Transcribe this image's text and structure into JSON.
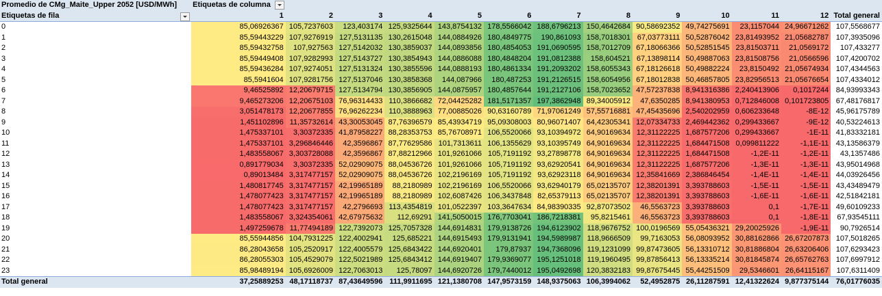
{
  "pivot": {
    "title": "Promedio de CMg_Maite_Upper 2052 [USD/MWh]",
    "col_header_label": "Etiquetas de columna",
    "row_header_label": "Etiquetas de fila",
    "total_label": "Total general",
    "columns": [
      "1",
      "2",
      "3",
      "4",
      "5",
      "6",
      "7",
      "8",
      "9",
      "10",
      "11",
      "12"
    ],
    "rows": [
      {
        "label": "0",
        "values": [
          "85,06926367",
          "105,7237603",
          "123,403174",
          "125,9325644",
          "143,8754132",
          "178,5566042",
          "188,6796213",
          "150,4642684",
          "90,58692352",
          "49,74275691",
          "23,1157044",
          "24,96671262"
        ],
        "total": "107,5568677"
      },
      {
        "label": "1",
        "values": [
          "85,59443229",
          "107,9276919",
          "127,5131135",
          "130,2615048",
          "144,0884926",
          "180,4849775",
          "190,861093",
          "158,7018301",
          "67,03773111",
          "50,52876042",
          "23,81493952",
          "21,05682787"
        ],
        "total": "107,3935096"
      },
      {
        "label": "2",
        "values": [
          "85,59432758",
          "107,927563",
          "127,5142032",
          "130,3859037",
          "144,0893856",
          "180,4854053",
          "191,0690595",
          "158,7012709",
          "67,18066366",
          "50,52851545",
          "23,81503711",
          "21,0569172"
        ],
        "total": "107,433277"
      },
      {
        "label": "3",
        "values": [
          "85,59449408",
          "107,9282993",
          "127,5143727",
          "130,3854943",
          "144,0886088",
          "180,4848204",
          "191,0812388",
          "158,604521",
          "67,13898114",
          "50,49887063",
          "23,81508756",
          "21,0566596"
        ],
        "total": "107,4200702"
      },
      {
        "label": "4",
        "values": [
          "85,59436284",
          "107,9274051",
          "127,5131324",
          "130,3855596",
          "144,0888193",
          "180,4861334",
          "191,2093202",
          "158,6055343",
          "67,18126618",
          "50,49882224",
          "23,8150492",
          "21,05674934"
        ],
        "total": "107,4344563"
      },
      {
        "label": "5",
        "values": [
          "85,5941604",
          "107,9281756",
          "127,5137046",
          "130,3858368",
          "144,087966",
          "180,487253",
          "191,2126515",
          "158,6054956",
          "67,18012838",
          "50,46857805",
          "23,82956513",
          "21,05676654"
        ],
        "total": "107,4334012"
      },
      {
        "label": "6",
        "values": [
          "9,46525892",
          "12,20679715",
          "127,5134794",
          "130,3856905",
          "144,0875957",
          "180,4857644",
          "191,2127106",
          "158,7023652",
          "47,57237838",
          "8,941316386",
          "2,240413906",
          "0,1017244"
        ],
        "total": "84,93993343"
      },
      {
        "label": "7",
        "values": [
          "9,465273206",
          "12,20675103",
          "76,96314433",
          "110,3866682",
          "72,04425282",
          "181,5171357",
          "197,3862948",
          "89,34005912",
          "47,6350285",
          "8,941380953",
          "0,712846008",
          "0,101723805"
        ],
        "total": "67,48176817"
      },
      {
        "label": "8",
        "values": [
          "3,051478173",
          "12,20677855",
          "76,96262234",
          "110,3888963",
          "77,00885026",
          "90,63160789",
          "71,97061249",
          "57,55716881",
          "47,45435696",
          "2,540202959",
          "0,606233648",
          "-8E-12"
        ],
        "total": "45,96175789"
      },
      {
        "label": "9",
        "values": [
          "1,451102896",
          "11,35732614",
          "43,30053045",
          "87,76396579",
          "85,43934719",
          "95,09308003",
          "80,96071407",
          "64,42305341",
          "12,07334733",
          "2,469442362",
          "0,299433667",
          "-9E-12"
        ],
        "total": "40,53224613"
      },
      {
        "label": "10",
        "values": [
          "1,475337101",
          "3,30372335",
          "41,87958227",
          "88,28353753",
          "85,76708971",
          "106,5520066",
          "93,10394972",
          "64,90169634",
          "12,31122225",
          "1,687577206",
          "0,299433667",
          "-1E-11"
        ],
        "total": "41,83332181"
      },
      {
        "label": "11",
        "values": [
          "1,475337101",
          "3,296846446",
          "42,3596867",
          "87,77629586",
          "101,7313611",
          "106,1355629",
          "93,10395749",
          "64,90169634",
          "12,31122225",
          "1,684471508",
          "0,099811222",
          "-1,1E-11"
        ],
        "total": "43,13586379"
      },
      {
        "label": "12",
        "values": [
          "1,483558067",
          "3,303728088",
          "42,3596867",
          "87,88212966",
          "101,9261066",
          "105,7191192",
          "93,27898778",
          "64,90169634",
          "12,31122225",
          "1,684471508",
          "-1,2E-11",
          "-1,2E-11"
        ],
        "total": "43,1357486"
      },
      {
        "label": "13",
        "values": [
          "0,891779034",
          "3,30372335",
          "52,02909075",
          "88,04536726",
          "101,9261066",
          "105,7191192",
          "93,62920541",
          "64,90169634",
          "12,31122225",
          "1,687577206",
          "-1,3E-11",
          "-1,3E-11"
        ],
        "total": "43,95014968"
      },
      {
        "label": "14",
        "values": [
          "0,89013484",
          "3,317477157",
          "52,02909075",
          "88,04536726",
          "102,2196169",
          "105,7191192",
          "93,62923118",
          "64,90169634",
          "12,35841669",
          "2,386846454",
          "-1,4E-11",
          "-1,4E-11"
        ],
        "total": "44,03926456"
      },
      {
        "label": "15",
        "values": [
          "1,480817745",
          "3,317477157",
          "42,19965189",
          "88,2180989",
          "102,2196169",
          "106,5520066",
          "93,62940179",
          "65,02135707",
          "12,38201391",
          "3,393788603",
          "-1,5E-11",
          "-1,5E-11"
        ],
        "total": "43,43489479"
      },
      {
        "label": "16",
        "values": [
          "1,478077423",
          "3,317477157",
          "42,19965189",
          "88,2180989",
          "102,6087426",
          "106,3437848",
          "82,65379113",
          "65,02135707",
          "12,38201391",
          "3,393788603",
          "-1,6E-11",
          "-1,6E-11"
        ],
        "total": "42,51842181"
      },
      {
        "label": "17",
        "values": [
          "1,478077423",
          "3,317477157",
          "42,2796693",
          "113,4354819",
          "101,0522397",
          "103,3647634",
          "84,98390335",
          "92,87073502",
          "46,5563723",
          "3,393788603",
          "0,1",
          "-1,7E-11"
        ],
        "total": "49,60109233"
      },
      {
        "label": "18",
        "values": [
          "1,483558067",
          "3,324354061",
          "42,67975632",
          "112,69291",
          "141,5050015",
          "176,7703041",
          "186,7218381",
          "95,8215461",
          "46,5563723",
          "3,393788603",
          "0,1",
          "-1,8E-11"
        ],
        "total": "67,93545111"
      },
      {
        "label": "19",
        "values": [
          "1,497259678",
          "11,77494189",
          "122,7392073",
          "125,7057328",
          "144,6914831",
          "179,9138726",
          "194,6123902",
          "118,9676752",
          "100,0196569",
          "55,05436321",
          "29,20025926",
          "-1,9E-11"
        ],
        "total": "90,7926514"
      },
      {
        "label": "20",
        "values": [
          "85,55944856",
          "104,7931225",
          "122,4002941",
          "125,685221",
          "144,6915493",
          "179,9131941",
          "194,5989987",
          "118,9666509",
          "99,7163053",
          "56,08093952",
          "30,88162866",
          "26,67207873"
        ],
        "total": "107,5018265"
      },
      {
        "label": "21",
        "values": [
          "86,28043658",
          "105,2520917",
          "122,4005579",
          "125,6843422",
          "144,6920401",
          "179,87937",
          "194,7368096",
          "119,1231099",
          "99,87473605",
          "56,13310712",
          "30,81886804",
          "26,63206406"
        ],
        "total": "107,6293423"
      },
      {
        "label": "22",
        "values": [
          "86,28055303",
          "105,4529079",
          "122,5021989",
          "125,6843412",
          "144,6919407",
          "179,9369077",
          "195,1251018",
          "119,1960495",
          "99,87856413",
          "56,13335214",
          "30,81845874",
          "26,65762763"
        ],
        "total": "107,6997912"
      },
      {
        "label": "23",
        "values": [
          "85,98489194",
          "105,6926009",
          "122,7063013",
          "125,78097",
          "144,6920726",
          "179,7440012",
          "195,0492698",
          "120,3832183",
          "99,87675445",
          "55,44251509",
          "29,5346601",
          "26,64115167"
        ],
        "total": "107,6311409"
      }
    ],
    "totals": [
      "37,25889253",
      "48,17118737",
      "87,43649596",
      "111,9911695",
      "121,1380708",
      "147,9573159",
      "148,9375063",
      "106,3994062",
      "52,4952875",
      "26,11287591",
      "12,41322624",
      "9,877375144"
    ],
    "grand_total": "76,01776035",
    "colors": {
      "low": "#f8696b",
      "mid": "#ffeb84",
      "high": "#63be7b",
      "header_bg": "#dce6f1"
    }
  }
}
